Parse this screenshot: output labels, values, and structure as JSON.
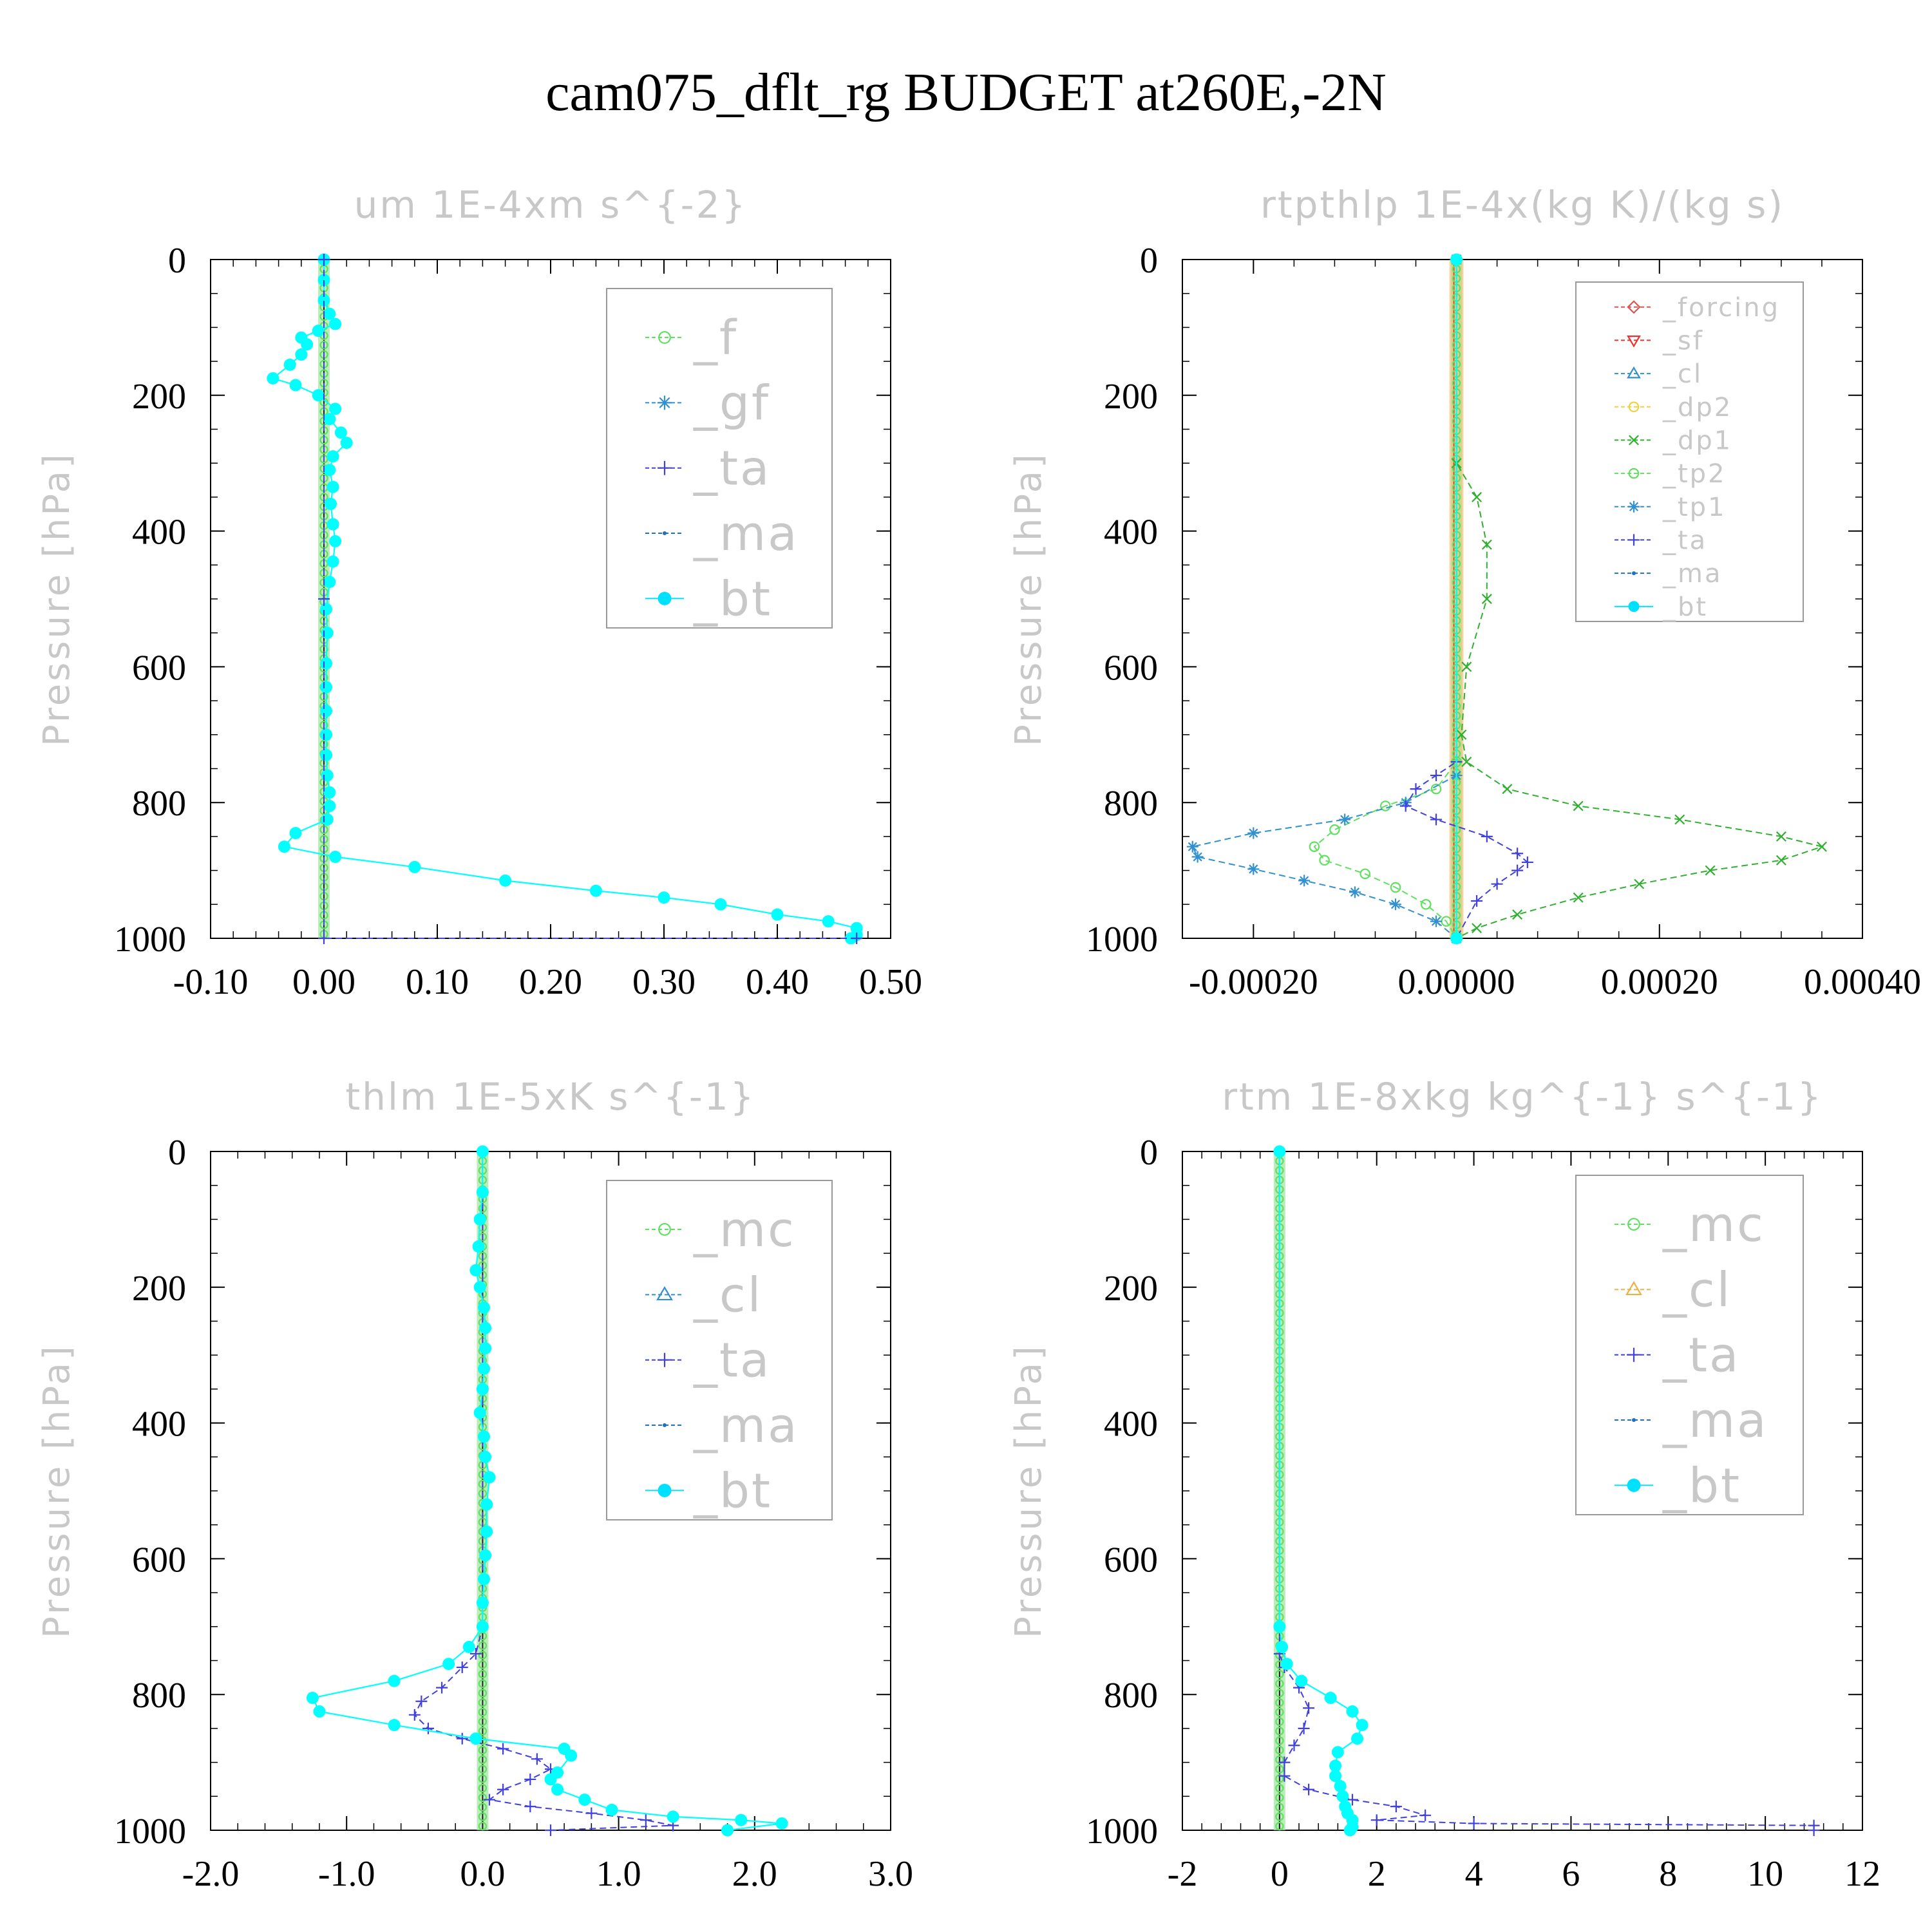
{
  "title": "cam075_dflt_rg  BUDGET at260E,-2N",
  "chart_data": [
    {
      "type": "line",
      "title": "um  1E-4xm s^{-2}",
      "ylabel": "Pressure [hPa]",
      "ylim": [
        1000,
        0
      ],
      "xlim": [
        -0.1,
        0.5
      ],
      "xticks": [
        "-0.10",
        "0.00",
        "0.10",
        "0.20",
        "0.30",
        "0.40",
        "0.50"
      ],
      "yticks": [
        "0",
        "200",
        "400",
        "600",
        "800",
        "1000"
      ],
      "legend": [
        "_f",
        "_gf",
        "_ta",
        "_ma",
        "_bt"
      ],
      "series": [
        {
          "name": "_bt",
          "color": "#00ffff",
          "points": [
            [
              0,
              0
            ],
            [
              0,
              30
            ],
            [
              0,
              60
            ],
            [
              0.005,
              80
            ],
            [
              0.01,
              95
            ],
            [
              -0.005,
              105
            ],
            [
              -0.02,
              115
            ],
            [
              -0.015,
              125
            ],
            [
              -0.02,
              140
            ],
            [
              -0.03,
              155
            ],
            [
              -0.045,
              175
            ],
            [
              -0.025,
              185
            ],
            [
              -0.005,
              200
            ],
            [
              0.01,
              220
            ],
            [
              0.005,
              235
            ],
            [
              0.015,
              255
            ],
            [
              0.02,
              270
            ],
            [
              0.008,
              290
            ],
            [
              0.005,
              310
            ],
            [
              0.008,
              335
            ],
            [
              0.006,
              360
            ],
            [
              0.008,
              390
            ],
            [
              0.01,
              415
            ],
            [
              0.008,
              445
            ],
            [
              0.005,
              475
            ],
            [
              0.002,
              515
            ],
            [
              0.003,
              550
            ],
            [
              0.002,
              595
            ],
            [
              0.002,
              630
            ],
            [
              0.002,
              665
            ],
            [
              0.002,
              700
            ],
            [
              0.002,
              730
            ],
            [
              0.003,
              760
            ],
            [
              0.005,
              785
            ],
            [
              0.005,
              805
            ],
            [
              0.003,
              825
            ],
            [
              -0.025,
              845
            ],
            [
              -0.035,
              865
            ],
            [
              0.01,
              880
            ],
            [
              0.08,
              895
            ],
            [
              0.16,
              915
            ],
            [
              0.24,
              930
            ],
            [
              0.3,
              940
            ],
            [
              0.35,
              950
            ],
            [
              0.4,
              965
            ],
            [
              0.445,
              975
            ],
            [
              0.47,
              985
            ],
            [
              0.47,
              995
            ],
            [
              0.465,
              1000
            ]
          ]
        },
        {
          "name": "_ta",
          "color": "#4040e0",
          "points": [
            [
              0,
              0
            ],
            [
              0,
              500
            ],
            [
              0,
              1000
            ],
            [
              0.47,
              1000
            ]
          ]
        }
      ]
    },
    {
      "type": "line",
      "title": "rtpthlp  1E-4x(kg K)/(kg s)",
      "ylabel": "Pressure [hPa]",
      "ylim": [
        1000,
        0
      ],
      "xlim": [
        -0.00027,
        0.0004
      ],
      "xticks": [
        "-0.00020",
        "0.00000",
        "0.00020",
        "0.00040"
      ],
      "yticks": [
        "0",
        "200",
        "400",
        "600",
        "800",
        "1000"
      ],
      "legend": [
        "_forcing",
        "_sf",
        "_cl",
        "_dp2",
        "_dp1",
        "_tp2",
        "_tp1",
        "_ta",
        "_ma",
        "_bt"
      ],
      "series": [
        {
          "name": "_dp1",
          "color": "#30b030",
          "points": [
            [
              0,
              0
            ],
            [
              0,
              300
            ],
            [
              2e-05,
              350
            ],
            [
              3e-05,
              420
            ],
            [
              3e-05,
              500
            ],
            [
              1e-05,
              600
            ],
            [
              5e-06,
              700
            ],
            [
              1e-05,
              740
            ],
            [
              5e-05,
              780
            ],
            [
              0.00012,
              805
            ],
            [
              0.00022,
              825
            ],
            [
              0.00032,
              850
            ],
            [
              0.00036,
              865
            ],
            [
              0.00032,
              885
            ],
            [
              0.00025,
              900
            ],
            [
              0.00018,
              920
            ],
            [
              0.00012,
              940
            ],
            [
              6e-05,
              965
            ],
            [
              2e-05,
              985
            ],
            [
              0,
              1000
            ]
          ]
        },
        {
          "name": "_tp2",
          "color": "#60e060",
          "points": [
            [
              0,
              0
            ],
            [
              0,
              740
            ],
            [
              -2e-05,
              780
            ],
            [
              -7e-05,
              805
            ],
            [
              -0.00012,
              840
            ],
            [
              -0.00014,
              865
            ],
            [
              -0.00013,
              885
            ],
            [
              -9e-05,
              905
            ],
            [
              -6e-05,
              925
            ],
            [
              -3e-05,
              950
            ],
            [
              -1e-05,
              975
            ],
            [
              0,
              1000
            ]
          ]
        },
        {
          "name": "_tp1",
          "color": "#3090d0",
          "points": [
            [
              0,
              0
            ],
            [
              0,
              760
            ],
            [
              -5e-05,
              800
            ],
            [
              -0.00011,
              825
            ],
            [
              -0.0002,
              845
            ],
            [
              -0.00026,
              865
            ],
            [
              -0.000255,
              880
            ],
            [
              -0.0002,
              898
            ],
            [
              -0.00015,
              915
            ],
            [
              -0.0001,
              932
            ],
            [
              -6e-05,
              950
            ],
            [
              -2e-05,
              975
            ],
            [
              0,
              1000
            ]
          ]
        },
        {
          "name": "_ta",
          "color": "#4040e0",
          "points": [
            [
              0,
              0
            ],
            [
              0,
              740
            ],
            [
              -2e-05,
              760
            ],
            [
              -4e-05,
              780
            ],
            [
              -5e-05,
              805
            ],
            [
              -2e-05,
              825
            ],
            [
              3e-05,
              850
            ],
            [
              6e-05,
              875
            ],
            [
              7e-05,
              888
            ],
            [
              6e-05,
              900
            ],
            [
              4e-05,
              920
            ],
            [
              2e-05,
              945
            ],
            [
              0,
              1000
            ]
          ]
        },
        {
          "name": "_bt",
          "color": "#00ffff",
          "points": [
            [
              0,
              0
            ],
            [
              0,
              1000
            ]
          ]
        }
      ]
    },
    {
      "type": "line",
      "title": "thlm  1E-5xK s^{-1}",
      "ylabel": "Pressure [hPa]",
      "ylim": [
        1000,
        0
      ],
      "xlim": [
        -2.0,
        3.0
      ],
      "xticks": [
        "-2.0",
        "-1.0",
        "0.0",
        "1.0",
        "2.0",
        "3.0"
      ],
      "yticks": [
        "0",
        "200",
        "400",
        "600",
        "800",
        "1000"
      ],
      "legend": [
        "_mc",
        "_cl",
        "_ta",
        "_ma",
        "_bt"
      ],
      "series": [
        {
          "name": "_ta",
          "color": "#4040e0",
          "points": [
            [
              0,
              0
            ],
            [
              0,
              700
            ],
            [
              -0.05,
              740
            ],
            [
              -0.15,
              760
            ],
            [
              -0.3,
              790
            ],
            [
              -0.45,
              810
            ],
            [
              -0.5,
              830
            ],
            [
              -0.4,
              850
            ],
            [
              -0.15,
              865
            ],
            [
              0.15,
              880
            ],
            [
              0.4,
              895
            ],
            [
              0.5,
              910
            ],
            [
              0.35,
              925
            ],
            [
              0.15,
              940
            ],
            [
              0.05,
              955
            ],
            [
              0.35,
              965
            ],
            [
              0.8,
              975
            ],
            [
              1.2,
              985
            ],
            [
              1.4,
              993
            ],
            [
              0.5,
              1000
            ]
          ]
        },
        {
          "name": "_bt",
          "color": "#00ffff",
          "points": [
            [
              0,
              0
            ],
            [
              0,
              60
            ],
            [
              -0.02,
              100
            ],
            [
              -0.03,
              140
            ],
            [
              -0.05,
              175
            ],
            [
              -0.02,
              200
            ],
            [
              0.01,
              230
            ],
            [
              0.02,
              260
            ],
            [
              0.02,
              290
            ],
            [
              0.01,
              320
            ],
            [
              0.0,
              350
            ],
            [
              -0.02,
              385
            ],
            [
              0.01,
              420
            ],
            [
              0.02,
              450
            ],
            [
              0.05,
              480
            ],
            [
              0.03,
              520
            ],
            [
              0.03,
              560
            ],
            [
              0.02,
              595
            ],
            [
              0.01,
              630
            ],
            [
              0.0,
              665
            ],
            [
              0.0,
              700
            ],
            [
              -0.1,
              730
            ],
            [
              -0.25,
              755
            ],
            [
              -0.65,
              780
            ],
            [
              -1.25,
              805
            ],
            [
              -1.2,
              825
            ],
            [
              -0.65,
              845
            ],
            [
              -0.05,
              865
            ],
            [
              0.6,
              880
            ],
            [
              0.65,
              890
            ],
            [
              0.55,
              915
            ],
            [
              0.5,
              925
            ],
            [
              0.55,
              940
            ],
            [
              0.75,
              955
            ],
            [
              0.95,
              970
            ],
            [
              1.4,
              980
            ],
            [
              1.9,
              985
            ],
            [
              2.2,
              990
            ],
            [
              1.8,
              1000
            ]
          ]
        }
      ]
    },
    {
      "type": "line",
      "title": "rtm  1E-8xkg kg^{-1} s^{-1}",
      "ylabel": "Pressure [hPa]",
      "ylim": [
        1000,
        0
      ],
      "xlim": [
        -2,
        12
      ],
      "xticks": [
        "-2",
        "0",
        "2",
        "4",
        "6",
        "8",
        "10",
        "12"
      ],
      "yticks": [
        "0",
        "200",
        "400",
        "600",
        "800",
        "1000"
      ],
      "legend": [
        "_mc",
        "_cl",
        "_ta",
        "_ma",
        "_bt"
      ],
      "series": [
        {
          "name": "_ta",
          "color": "#4040e0",
          "points": [
            [
              0,
              0
            ],
            [
              0,
              740
            ],
            [
              0.1,
              760
            ],
            [
              0.4,
              790
            ],
            [
              0.6,
              820
            ],
            [
              0.5,
              850
            ],
            [
              0.3,
              875
            ],
            [
              0.1,
              900
            ],
            [
              0.1,
              920
            ],
            [
              0.6,
              940
            ],
            [
              1.5,
              955
            ],
            [
              2.4,
              965
            ],
            [
              3.0,
              978
            ],
            [
              2.0,
              985
            ],
            [
              4.0,
              990
            ],
            [
              11,
              993
            ],
            [
              11,
              1000
            ]
          ]
        },
        {
          "name": "_bt",
          "color": "#00ffff",
          "points": [
            [
              0,
              0
            ],
            [
              0,
              700
            ],
            [
              0.05,
              730
            ],
            [
              0.15,
              755
            ],
            [
              0.45,
              780
            ],
            [
              1.05,
              805
            ],
            [
              1.5,
              825
            ],
            [
              1.7,
              845
            ],
            [
              1.6,
              865
            ],
            [
              1.2,
              885
            ],
            [
              1.15,
              905
            ],
            [
              1.15,
              920
            ],
            [
              1.25,
              935
            ],
            [
              1.3,
              950
            ],
            [
              1.35,
              965
            ],
            [
              1.4,
              975
            ],
            [
              1.5,
              985
            ],
            [
              1.5,
              995
            ],
            [
              1.45,
              1000
            ]
          ]
        }
      ]
    }
  ]
}
